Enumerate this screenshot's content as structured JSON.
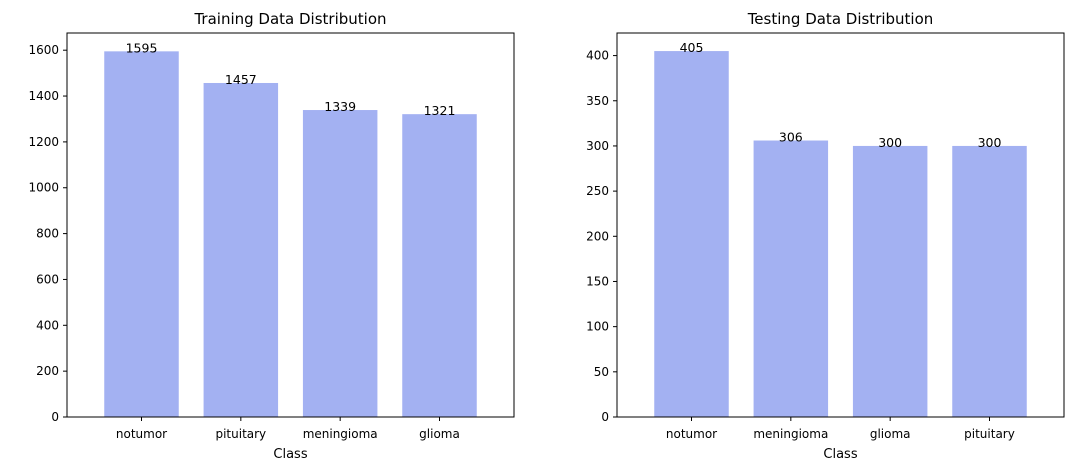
{
  "figure": {
    "background": "#ffffff",
    "bar_color": "#a3b1f2"
  },
  "chart_data": [
    {
      "type": "bar",
      "title": "Training Data Distribution",
      "xlabel": "Class",
      "ylabel": "",
      "categories": [
        "notumor",
        "pituitary",
        "meningioma",
        "glioma"
      ],
      "values": [
        1595,
        1457,
        1339,
        1321
      ],
      "data_labels": [
        "1595",
        "1457",
        "1339",
        "1321"
      ],
      "ylim": [
        0,
        1675
      ],
      "yticks": [
        0,
        200,
        400,
        600,
        800,
        1000,
        1200,
        1400,
        1600
      ],
      "ytick_labels": [
        "0",
        "200",
        "400",
        "600",
        "800",
        "1000",
        "1200",
        "1400",
        "1600"
      ],
      "grid": false,
      "legend": "none"
    },
    {
      "type": "bar",
      "title": "Testing Data Distribution",
      "xlabel": "Class",
      "ylabel": "",
      "categories": [
        "notumor",
        "meningioma",
        "glioma",
        "pituitary"
      ],
      "values": [
        405,
        306,
        300,
        300
      ],
      "data_labels": [
        "405",
        "306",
        "300",
        "300"
      ],
      "ylim": [
        0,
        425
      ],
      "yticks": [
        0,
        50,
        100,
        150,
        200,
        250,
        300,
        350,
        400
      ],
      "ytick_labels": [
        "0",
        "50",
        "100",
        "150",
        "200",
        "250",
        "300",
        "350",
        "400"
      ],
      "grid": false,
      "legend": "none"
    }
  ]
}
